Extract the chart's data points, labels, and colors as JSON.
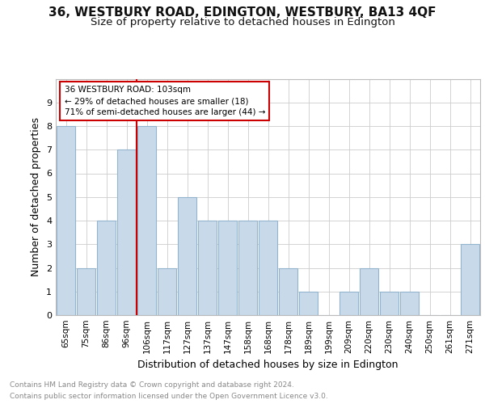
{
  "title1": "36, WESTBURY ROAD, EDINGTON, WESTBURY, BA13 4QF",
  "title2": "Size of property relative to detached houses in Edington",
  "xlabel": "Distribution of detached houses by size in Edington",
  "ylabel": "Number of detached properties",
  "categories": [
    "65sqm",
    "75sqm",
    "86sqm",
    "96sqm",
    "106sqm",
    "117sqm",
    "127sqm",
    "137sqm",
    "147sqm",
    "158sqm",
    "168sqm",
    "178sqm",
    "189sqm",
    "199sqm",
    "209sqm",
    "220sqm",
    "230sqm",
    "240sqm",
    "250sqm",
    "261sqm",
    "271sqm"
  ],
  "values": [
    8,
    2,
    4,
    7,
    8,
    2,
    5,
    4,
    4,
    4,
    4,
    2,
    1,
    0,
    1,
    2,
    1,
    1,
    0,
    0,
    3
  ],
  "bar_color": "#c8daea",
  "bar_edge_color": "#92b4cc",
  "reference_line_index": 4,
  "reference_label": "36 WESTBURY ROAD: 103sqm",
  "annotation_line1": "← 29% of detached houses are smaller (18)",
  "annotation_line2": "71% of semi-detached houses are larger (44) →",
  "annotation_box_color": "#ffffff",
  "annotation_box_edge": "#cc0000",
  "ref_line_color": "#cc0000",
  "ylim": [
    0,
    10
  ],
  "yticks": [
    0,
    1,
    2,
    3,
    4,
    5,
    6,
    7,
    8,
    9,
    10
  ],
  "footnote1": "Contains HM Land Registry data © Crown copyright and database right 2024.",
  "footnote2": "Contains public sector information licensed under the Open Government Licence v3.0.",
  "grid_color": "#cccccc",
  "title1_fontsize": 11,
  "title2_fontsize": 9.5,
  "xlabel_fontsize": 9,
  "ylabel_fontsize": 9,
  "footnote_fontsize": 6.5
}
